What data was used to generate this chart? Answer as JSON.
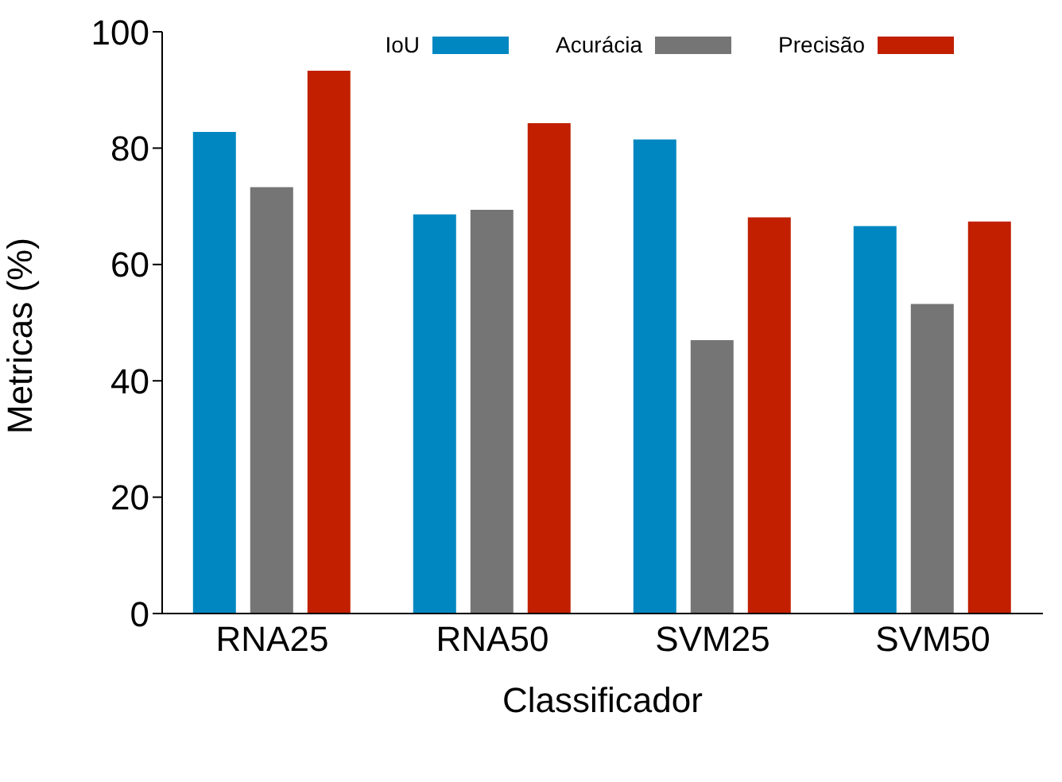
{
  "chart_data": {
    "type": "bar",
    "xlabel": "Classificador",
    "ylabel": "Metricas (%)",
    "categories": [
      "RNA25",
      "RNA50",
      "SVM25",
      "SVM50"
    ],
    "series": [
      {
        "name": "IoU",
        "color": "#0087c1",
        "values": [
          82.8,
          68.6,
          81.5,
          66.6
        ]
      },
      {
        "name": "Acurácia",
        "color": "#757575",
        "values": [
          73.3,
          69.4,
          47.0,
          53.2
        ]
      },
      {
        "name": "Precisão",
        "color": "#c11f00",
        "values": [
          93.3,
          84.3,
          68.1,
          67.4
        ]
      }
    ],
    "ylim": [
      0,
      100
    ],
    "yticks": [
      0,
      20,
      40,
      60,
      80,
      100
    ],
    "grid": false,
    "legend": "top"
  }
}
